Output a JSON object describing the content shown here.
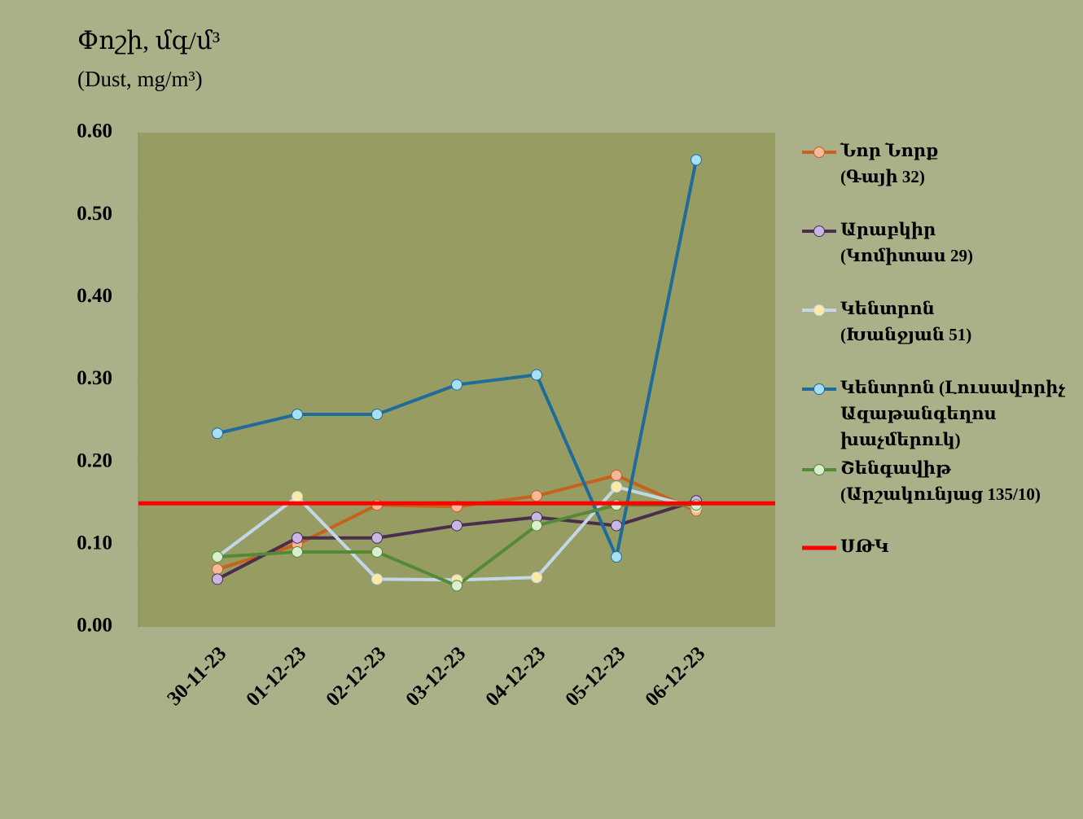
{
  "chart_data": {
    "type": "line",
    "title": "Փոշի, մգ/մ³",
    "subtitle": "(Dust, mg/m³)",
    "categories": [
      "30-11-23",
      "01-12-23",
      "02-12-23",
      "03-12-23",
      "04-12-23",
      "05-12-23",
      "06-12-23"
    ],
    "ylim": [
      0,
      0.6
    ],
    "yticks": [
      {
        "value": 0,
        "label": "0.00"
      },
      {
        "value": 0.1,
        "label": "0.10"
      },
      {
        "value": 0.2,
        "label": "0.20"
      },
      {
        "value": 0.3,
        "label": "0.30"
      },
      {
        "value": 0.4,
        "label": "0.40"
      },
      {
        "value": 0.5,
        "label": "0.50"
      },
      {
        "value": 0.6,
        "label": "0.60"
      }
    ],
    "series": [
      {
        "name": [
          "Նոր Նորք",
          "(Գայի 32)"
        ],
        "color": "#c5621c",
        "marker_color": "#f7b79a",
        "values": [
          0.07,
          0.1,
          0.148,
          0.146,
          0.159,
          0.184,
          0.141
        ]
      },
      {
        "name": [
          "Արաբկիր",
          "(Կոմիտաս 29)"
        ],
        "color": "#4b2d4d",
        "marker_color": "#c8b7e6",
        "values": [
          0.058,
          0.108,
          0.108,
          0.123,
          0.133,
          0.123,
          0.153
        ]
      },
      {
        "name": [
          "Կենտրոն",
          "(Խանջյան 51)"
        ],
        "color": "#c3d7e8",
        "marker_color": "#fde9a6",
        "values": [
          0.085,
          0.158,
          0.058,
          0.057,
          0.06,
          0.17,
          0.145
        ]
      },
      {
        "name": [
          "Կենտրոն (Լուսավորիչ",
          "Ազաթանգեղոս",
          "խաչմերուկ)"
        ],
        "color": "#1f6b99",
        "marker_color": "#a6e0f5",
        "values": [
          0.235,
          0.258,
          0.258,
          0.294,
          0.306,
          0.085,
          0.567
        ]
      },
      {
        "name": [
          "Շենգավիթ",
          "(Արշակունյաց 135/10)"
        ],
        "color": "#548a35",
        "marker_color": "#d9efcf",
        "values": [
          0.085,
          0.091,
          0.091,
          0.05,
          0.123,
          0.148,
          0.148
        ]
      }
    ],
    "threshold": {
      "name": [
        "ՍԹԿ"
      ],
      "value": 0.15,
      "color": "#ff0000"
    }
  }
}
